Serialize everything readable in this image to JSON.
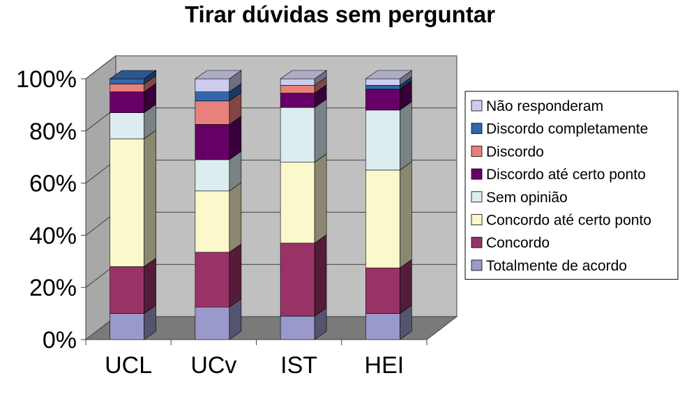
{
  "chart_data": {
    "type": "bar",
    "stacked": true,
    "percent": true,
    "three_d": true,
    "title": "Tirar dúvidas sem perguntar",
    "categories": [
      "UCL",
      "UCv",
      "IST",
      "HEI"
    ],
    "yticks": [
      "0%",
      "20%",
      "40%",
      "60%",
      "80%",
      "100%"
    ],
    "ylim": [
      0,
      100
    ],
    "grid": true,
    "legend_position": "right",
    "series": [
      {
        "name": "Totalmente de acordo",
        "color": "#9999cc",
        "values": [
          10,
          12.5,
          9,
          10
        ]
      },
      {
        "name": "Concordo",
        "color": "#993366",
        "values": [
          18,
          21,
          28,
          17.5
        ]
      },
      {
        "name": "Concordo até certo ponto",
        "color": "#fbf8cc",
        "values": [
          49,
          23.5,
          31,
          37.5
        ]
      },
      {
        "name": "Sem opinião",
        "color": "#dcedf0",
        "values": [
          10,
          12,
          21,
          23
        ]
      },
      {
        "name": "Discordo até certo ponto",
        "color": "#660066",
        "values": [
          8,
          13.5,
          5.5,
          8
        ]
      },
      {
        "name": "Discordo",
        "color": "#e8817b",
        "values": [
          3,
          9,
          3,
          0
        ]
      },
      {
        "name": "Discordo completamente",
        "color": "#3366aa",
        "values": [
          2,
          3.5,
          0,
          1.5
        ]
      },
      {
        "name": "Não responderam",
        "color": "#ccccee",
        "values": [
          0,
          5,
          2.5,
          2.5
        ]
      }
    ]
  }
}
